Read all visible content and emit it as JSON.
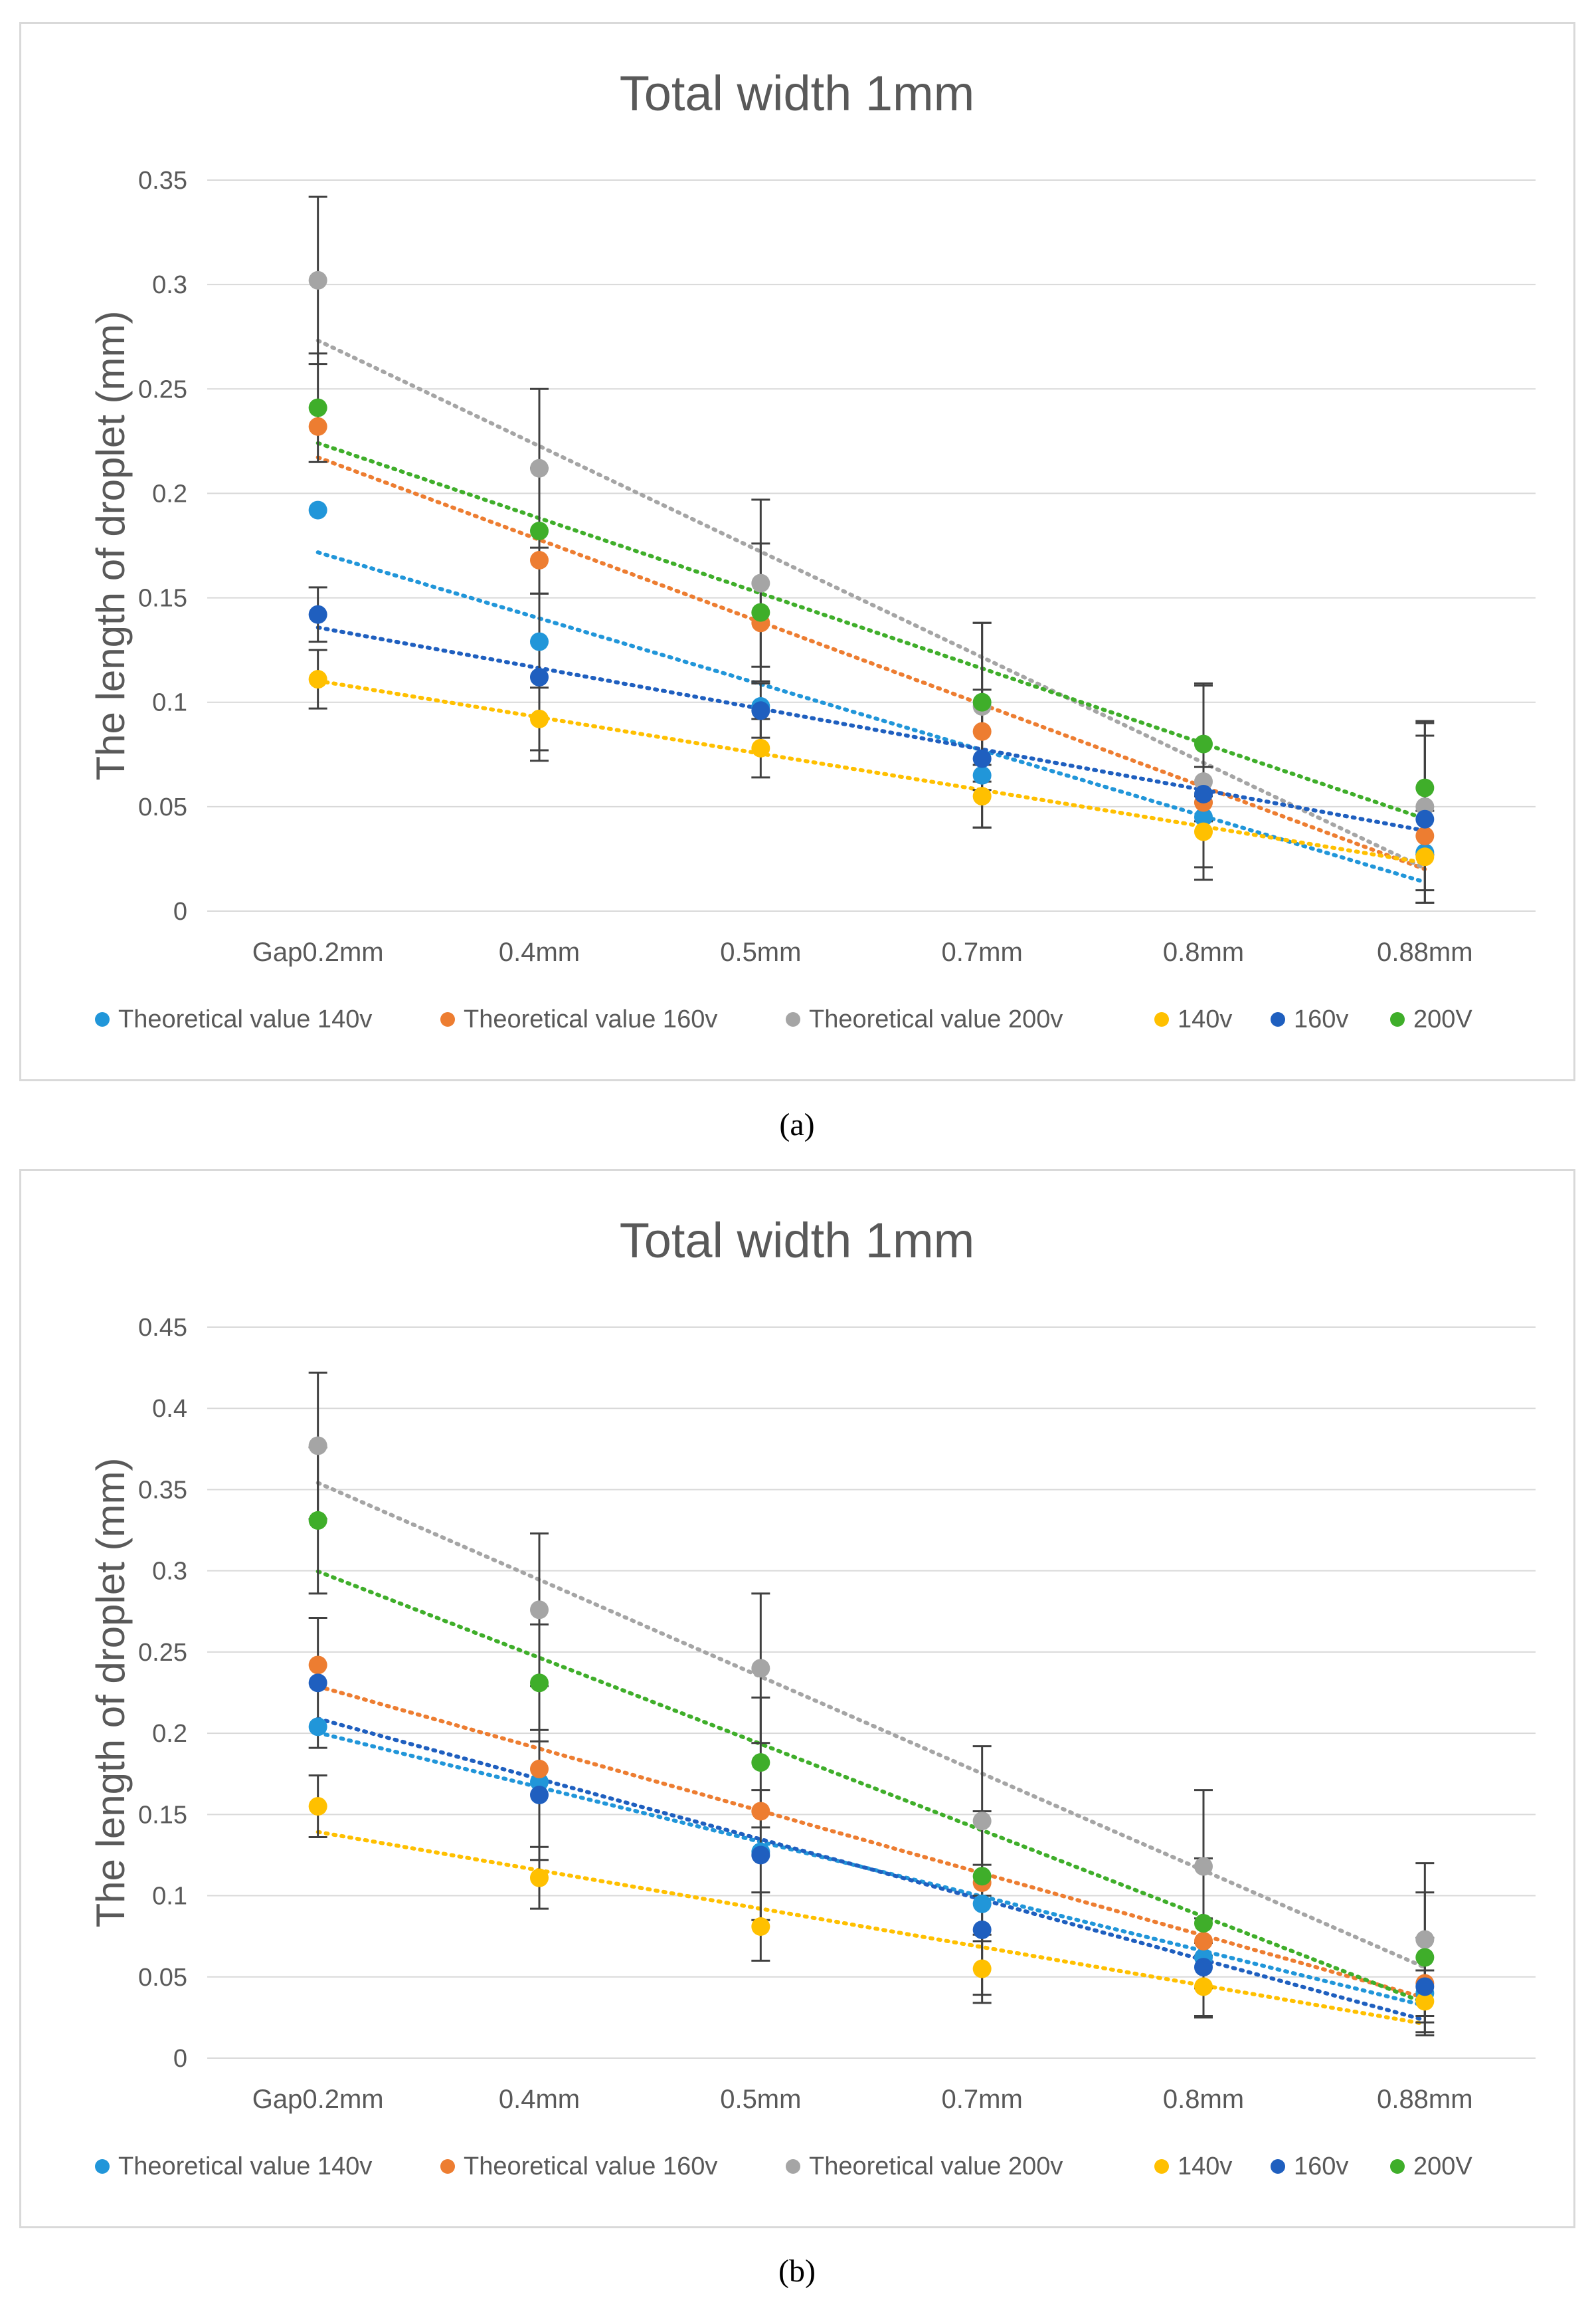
{
  "chart_data": [
    {
      "type": "scatter",
      "title": "Total width 1mm",
      "xlabel": "",
      "ylabel": "The length of droplet (mm)",
      "categories": [
        "Gap0.2mm",
        "0.4mm",
        "0.5mm",
        "0.7mm",
        "0.8mm",
        "0.88mm"
      ],
      "ylim": [
        0,
        0.35
      ],
      "yticks": [
        "0",
        "0.05",
        "0.1",
        "0.15",
        "0.2",
        "0.25",
        "0.3",
        "0.35"
      ],
      "legend_position": "bottom",
      "series": [
        {
          "name": "Theoretical value 140v",
          "color": "#2196d9",
          "values": [
            0.192,
            0.129,
            0.098,
            0.065,
            0.045,
            0.028
          ],
          "errors": null,
          "trendline": true
        },
        {
          "name": "Theoretical value 160v",
          "color": "#ed7d31",
          "values": [
            0.232,
            0.168,
            0.138,
            0.086,
            0.052,
            0.036
          ],
          "errors": null,
          "trendline": true
        },
        {
          "name": "Theoretical value 200v",
          "color": "#a5a5a5",
          "values": [
            0.302,
            0.212,
            0.157,
            0.098,
            0.062,
            0.05
          ],
          "errors": [
            0.04,
            0.038,
            0.04,
            0.04,
            0.047,
            0.04
          ],
          "trendline": true
        },
        {
          "name": "140v",
          "color": "#ffc000",
          "values": [
            0.111,
            0.092,
            0.078,
            0.055,
            0.038,
            0.026
          ],
          "errors": [
            0.014,
            0.015,
            0.014,
            0.015,
            0.017,
            0.022
          ],
          "trendline": true
        },
        {
          "name": "160v",
          "color": "#1f5fbf",
          "values": [
            0.142,
            0.112,
            0.096,
            0.073,
            0.056,
            0.044
          ],
          "errors": [
            0.013,
            0.04,
            0.013,
            0.033,
            0.013,
            0.04
          ],
          "trendline": true
        },
        {
          "name": "200V",
          "color": "#3fae2a",
          "values": [
            0.241,
            0.182,
            0.143,
            0.1,
            0.08,
            0.059
          ],
          "errors": [
            0.026,
            0.03,
            0.033,
            0.038,
            0.028,
            0.032
          ],
          "trendline": true
        }
      ]
    },
    {
      "type": "scatter",
      "title": "Total width 1mm",
      "xlabel": "",
      "ylabel": "The length of droplet (mm)",
      "categories": [
        "Gap0.2mm",
        "0.4mm",
        "0.5mm",
        "0.7mm",
        "0.8mm",
        "0.88mm"
      ],
      "ylim": [
        0,
        0.45
      ],
      "yticks": [
        "0",
        "0.05",
        "0.1",
        "0.15",
        "0.2",
        "0.25",
        "0.3",
        "0.35",
        "0.4",
        "0.45"
      ],
      "legend_position": "bottom",
      "series": [
        {
          "name": "Theoretical value 140v",
          "color": "#2196d9",
          "values": [
            0.204,
            0.17,
            0.127,
            0.095,
            0.062,
            0.04
          ],
          "errors": null,
          "trendline": true
        },
        {
          "name": "Theoretical value 160v",
          "color": "#ed7d31",
          "values": [
            0.242,
            0.178,
            0.152,
            0.108,
            0.072,
            0.046
          ],
          "errors": null,
          "trendline": true
        },
        {
          "name": "Theoretical value 200v",
          "color": "#a5a5a5",
          "values": [
            0.377,
            0.276,
            0.24,
            0.146,
            0.118,
            0.073
          ],
          "errors": [
            0.045,
            0.047,
            0.046,
            0.046,
            0.047,
            0.047
          ],
          "trendline": true
        },
        {
          "name": "140v",
          "color": "#ffc000",
          "values": [
            0.155,
            0.111,
            0.081,
            0.055,
            0.044,
            0.035
          ],
          "errors": [
            0.019,
            0.019,
            0.021,
            0.021,
            0.019,
            0.019
          ],
          "trendline": true
        },
        {
          "name": "160v",
          "color": "#1f5fbf",
          "values": [
            0.231,
            0.162,
            0.125,
            0.079,
            0.056,
            0.044
          ],
          "errors": [
            0.04,
            0.04,
            0.04,
            0.04,
            0.03,
            0.03
          ],
          "trendline": true
        },
        {
          "name": "200V",
          "color": "#3fae2a",
          "values": [
            0.331,
            0.231,
            0.182,
            0.112,
            0.083,
            0.062
          ],
          "errors": [
            0.045,
            0.036,
            0.04,
            0.04,
            0.04,
            0.04
          ],
          "trendline": true
        }
      ]
    }
  ],
  "captions": [
    "(a)",
    "(b)"
  ]
}
